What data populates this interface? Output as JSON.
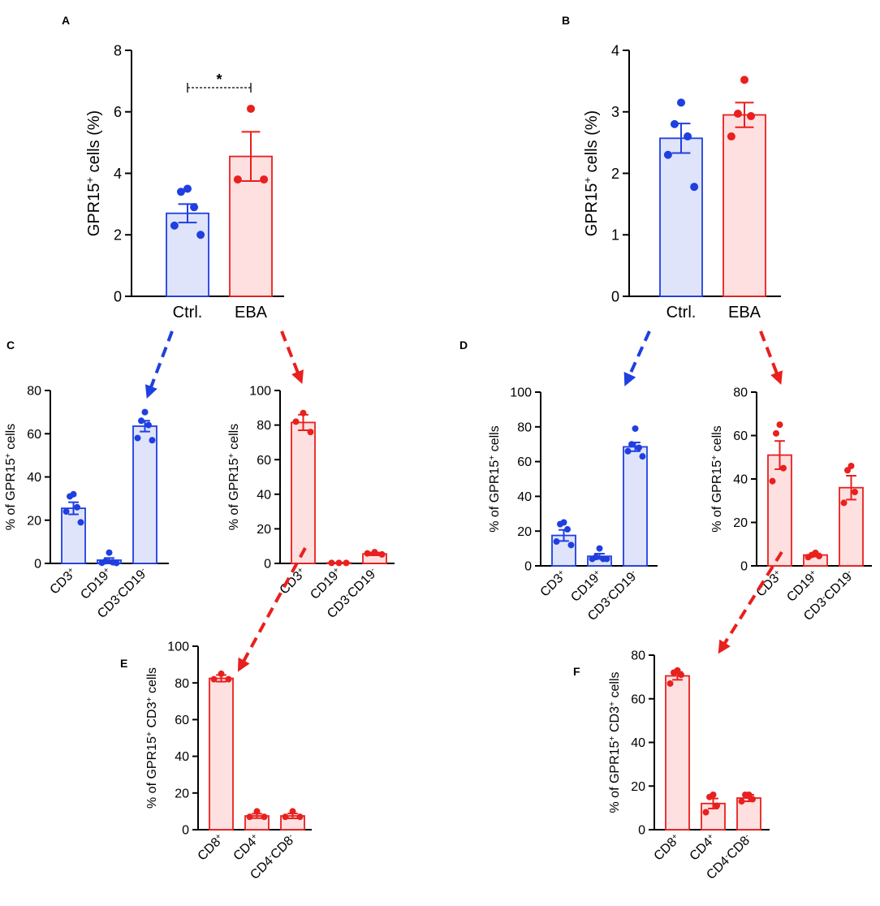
{
  "figure": {
    "arrow_colors": {
      "blue": "#1f3fe0",
      "red": "#e8201e"
    },
    "palette": {
      "blue": {
        "fill": "#dfe4fb",
        "stroke": "#1f3fe0",
        "dot": "#1f3fe0"
      },
      "red": {
        "fill": "#fde0df",
        "stroke": "#e8201e",
        "dot": "#e8201e"
      }
    }
  },
  "chart_data": [
    {
      "panel": "A",
      "type": "bar",
      "ylabel_main": "GPR15",
      "ylabel_sup": "+",
      "ylabel_rest": " cells (%)",
      "ylim": [
        0,
        8
      ],
      "yticks": [
        0,
        2,
        4,
        6,
        8
      ],
      "significance": "*",
      "categories": [
        {
          "parts": [
            [
              "Ctrl.",
              ""
            ]
          ]
        },
        {
          "parts": [
            [
              "EBA",
              ""
            ]
          ]
        }
      ],
      "series": [
        {
          "name": "Ctrl.",
          "color": "blue",
          "mean": 2.7,
          "sem": 0.3,
          "points": [
            3.5,
            3.4,
            2.9,
            2.3,
            2.0
          ]
        },
        {
          "name": "EBA",
          "color": "red",
          "mean": 4.55,
          "sem": 0.8,
          "points": [
            6.1,
            3.8,
            3.8
          ]
        }
      ]
    },
    {
      "panel": "B",
      "type": "bar",
      "ylabel_main": "GPR15",
      "ylabel_sup": "+",
      "ylabel_rest": " cells (%)",
      "ylim": [
        0,
        4
      ],
      "yticks": [
        0,
        1,
        2,
        3,
        4
      ],
      "categories": [
        {
          "parts": [
            [
              "Ctrl.",
              ""
            ]
          ]
        },
        {
          "parts": [
            [
              "EBA",
              ""
            ]
          ]
        }
      ],
      "series": [
        {
          "name": "Ctrl.",
          "color": "blue",
          "mean": 2.57,
          "sem": 0.24,
          "points": [
            3.15,
            2.8,
            2.6,
            2.3,
            1.78
          ]
        },
        {
          "name": "EBA",
          "color": "red",
          "mean": 2.95,
          "sem": 0.2,
          "points": [
            3.52,
            2.97,
            2.93,
            2.6
          ]
        }
      ]
    },
    {
      "panel": "C",
      "type": "bar",
      "ylabel_main": "% of GPR15",
      "ylabel_sup": "+",
      "ylabel_rest": " cells",
      "ylim": [
        0,
        80
      ],
      "yticks": [
        0,
        20,
        40,
        60,
        80
      ],
      "categories": [
        {
          "parts": [
            [
              "CD3",
              "+"
            ]
          ]
        },
        {
          "parts": [
            [
              "CD19",
              "+"
            ]
          ]
        },
        {
          "parts": [
            [
              "CD3",
              "-"
            ],
            [
              "CD19",
              "-"
            ]
          ]
        }
      ],
      "series": [
        {
          "color": "blue",
          "mean": 25.5,
          "sem": 2.8,
          "points": [
            32,
            31,
            26,
            24,
            19
          ]
        },
        {
          "color": "blue",
          "mean": 1.5,
          "sem": 1.0,
          "points": [
            5,
            1,
            0.5,
            0.3,
            0.2
          ]
        },
        {
          "color": "blue",
          "mean": 63.5,
          "sem": 2.5,
          "points": [
            70,
            66,
            64,
            58,
            57
          ]
        }
      ]
    },
    {
      "panel": "C2",
      "type": "bar",
      "ylabel_main": "% of GPR15",
      "ylabel_sup": "+",
      "ylabel_rest": " cells",
      "ylim": [
        0,
        100
      ],
      "yticks": [
        0,
        20,
        40,
        60,
        80,
        100
      ],
      "categories": [
        {
          "parts": [
            [
              "CD3",
              "+"
            ]
          ]
        },
        {
          "parts": [
            [
              "CD19",
              "+"
            ]
          ]
        },
        {
          "parts": [
            [
              "CD3",
              "-"
            ],
            [
              "CD19",
              "-"
            ]
          ]
        }
      ],
      "series": [
        {
          "color": "red",
          "mean": 81.5,
          "sem": 4.5,
          "points": [
            87,
            82,
            76
          ]
        },
        {
          "color": "red",
          "mean": 0.3,
          "sem": 0.1,
          "points": [
            0.3,
            0.3,
            0.3
          ]
        },
        {
          "color": "red",
          "mean": 5.5,
          "sem": 0.8,
          "points": [
            6.5,
            5.8,
            5.2
          ]
        }
      ]
    },
    {
      "panel": "D",
      "type": "bar",
      "ylabel_main": "% of GPR15",
      "ylabel_sup": "+",
      "ylabel_rest": " cells",
      "ylim": [
        0,
        100
      ],
      "yticks": [
        0,
        20,
        40,
        60,
        80,
        100
      ],
      "categories": [
        {
          "parts": [
            [
              "CD3",
              "+"
            ]
          ]
        },
        {
          "parts": [
            [
              "CD19",
              "+"
            ]
          ]
        },
        {
          "parts": [
            [
              "CD3",
              "-"
            ],
            [
              "CD19",
              "-"
            ]
          ]
        }
      ],
      "series": [
        {
          "color": "blue",
          "mean": 17.5,
          "sem": 3.2,
          "points": [
            25,
            24,
            21,
            14,
            12
          ]
        },
        {
          "color": "blue",
          "mean": 5.5,
          "sem": 1.5,
          "points": [
            10,
            5,
            4,
            4,
            4
          ]
        },
        {
          "color": "blue",
          "mean": 68.5,
          "sem": 2.5,
          "points": [
            79,
            70,
            68,
            66,
            63
          ]
        }
      ]
    },
    {
      "panel": "D2",
      "type": "bar",
      "ylabel_main": "% of GPR15",
      "ylabel_sup": "+",
      "ylabel_rest": " cells",
      "ylim": [
        0,
        80
      ],
      "yticks": [
        0,
        20,
        40,
        60,
        80
      ],
      "categories": [
        {
          "parts": [
            [
              "CD3",
              "+"
            ]
          ]
        },
        {
          "parts": [
            [
              "CD19",
              "+"
            ]
          ]
        },
        {
          "parts": [
            [
              "CD3",
              "-"
            ],
            [
              "CD19",
              "-"
            ]
          ]
        }
      ],
      "series": [
        {
          "color": "red",
          "mean": 51,
          "sem": 6.5,
          "points": [
            65,
            61,
            45,
            39
          ]
        },
        {
          "color": "red",
          "mean": 5,
          "sem": 0.7,
          "points": [
            6,
            5,
            4.5,
            4
          ]
        },
        {
          "color": "red",
          "mean": 36,
          "sem": 5.5,
          "points": [
            46,
            44,
            34,
            29
          ]
        }
      ]
    },
    {
      "panel": "E",
      "type": "bar",
      "ylabel_main": "% of GPR15",
      "ylabel_sup": "+",
      "ylabel_mid": " CD3",
      "ylabel_sup2": "+",
      "ylabel_rest": " cells",
      "ylim": [
        0,
        100
      ],
      "yticks": [
        0,
        20,
        40,
        60,
        80,
        100
      ],
      "categories": [
        {
          "parts": [
            [
              "CD8",
              "+"
            ]
          ]
        },
        {
          "parts": [
            [
              "CD4",
              "+"
            ]
          ]
        },
        {
          "parts": [
            [
              "CD4",
              "-"
            ],
            [
              "CD8",
              "-"
            ]
          ]
        }
      ],
      "series": [
        {
          "color": "red",
          "mean": 82.5,
          "sem": 1.8,
          "points": [
            85,
            82,
            82
          ]
        },
        {
          "color": "red",
          "mean": 7.5,
          "sem": 1.2,
          "points": [
            10,
            7,
            7
          ]
        },
        {
          "color": "red",
          "mean": 7.5,
          "sem": 1.3,
          "points": [
            10,
            7,
            7
          ]
        }
      ]
    },
    {
      "panel": "F",
      "type": "bar",
      "ylabel_main": "% of GPR15",
      "ylabel_sup": "+",
      "ylabel_mid": " CD3",
      "ylabel_sup2": "+",
      "ylabel_rest": " cells",
      "ylim": [
        0,
        80
      ],
      "yticks": [
        0,
        20,
        40,
        60,
        80
      ],
      "categories": [
        {
          "parts": [
            [
              "CD8",
              "+"
            ]
          ]
        },
        {
          "parts": [
            [
              "CD4",
              "+"
            ]
          ]
        },
        {
          "parts": [
            [
              "CD4",
              "-"
            ],
            [
              "CD8",
              "-"
            ]
          ]
        }
      ],
      "series": [
        {
          "color": "red",
          "mean": 70.5,
          "sem": 1.8,
          "points": [
            73,
            72,
            71,
            67
          ]
        },
        {
          "color": "red",
          "mean": 12,
          "sem": 2.3,
          "points": [
            16,
            15,
            11,
            8
          ]
        },
        {
          "color": "red",
          "mean": 14.5,
          "sem": 1.5,
          "points": [
            16,
            16,
            14,
            13
          ]
        }
      ]
    }
  ]
}
